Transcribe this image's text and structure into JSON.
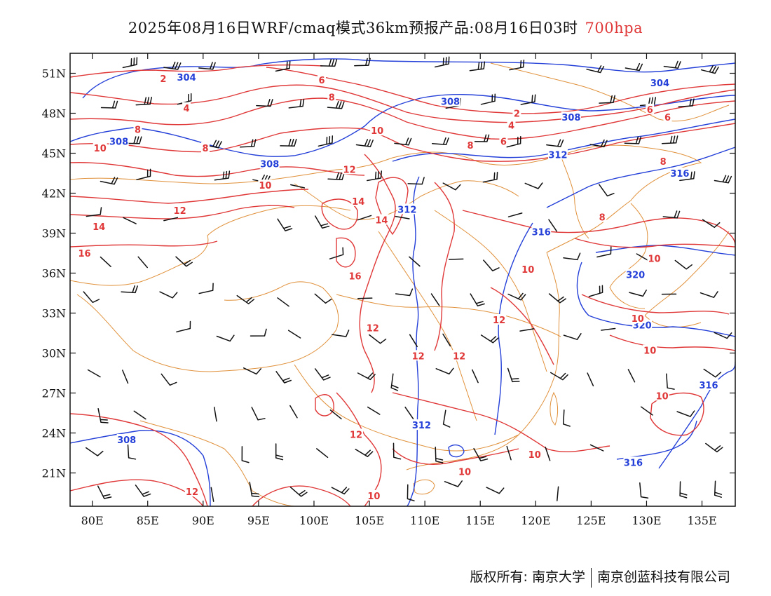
{
  "title": {
    "main": "2025年08月16日WRF/cmaq模式36km预报产品:08月16日03时",
    "level": "700hpa"
  },
  "axes": {
    "lat_labels": [
      "51N",
      "48N",
      "45N",
      "42N",
      "39N",
      "36N",
      "33N",
      "30N",
      "27N",
      "24N",
      "21N"
    ],
    "lat_values": [
      51,
      48,
      45,
      42,
      39,
      36,
      33,
      30,
      27,
      24,
      21
    ],
    "lon_labels": [
      "80E",
      "85E",
      "90E",
      "95E",
      "100E",
      "105E",
      "110E",
      "115E",
      "120E",
      "125E",
      "130E",
      "135E"
    ],
    "lon_values": [
      80,
      85,
      90,
      95,
      100,
      105,
      110,
      115,
      120,
      125,
      130,
      135
    ],
    "lon_range": [
      78,
      138
    ],
    "lat_range": [
      18.5,
      52.5
    ]
  },
  "colors": {
    "temperature_contour": "#e03838",
    "height_contour": "#2440d8",
    "boundary": "#e0903a",
    "wind_barb": "#111111",
    "title_level": "#e03838"
  },
  "height_labels": [
    {
      "text": "304",
      "lon": 88.5,
      "lat": 50.7
    },
    {
      "text": "304",
      "lon": 131.2,
      "lat": 50.3
    },
    {
      "text": "308",
      "lon": 112.3,
      "lat": 48.9
    },
    {
      "text": "308",
      "lon": 123.2,
      "lat": 47.7
    },
    {
      "text": "308",
      "lon": 82.4,
      "lat": 45.9
    },
    {
      "text": "308",
      "lon": 96.0,
      "lat": 44.2
    },
    {
      "text": "312",
      "lon": 122.0,
      "lat": 44.9
    },
    {
      "text": "316",
      "lon": 133.0,
      "lat": 43.5
    },
    {
      "text": "312",
      "lon": 108.4,
      "lat": 40.8
    },
    {
      "text": "316",
      "lon": 120.5,
      "lat": 39.1
    },
    {
      "text": "320",
      "lon": 129.0,
      "lat": 35.9
    },
    {
      "text": "320",
      "lon": 129.6,
      "lat": 32.1
    },
    {
      "text": "316",
      "lon": 135.6,
      "lat": 27.6
    },
    {
      "text": "312",
      "lon": 109.7,
      "lat": 24.6
    },
    {
      "text": "308",
      "lon": 83.1,
      "lat": 23.5
    },
    {
      "text": "316",
      "lon": 128.8,
      "lat": 21.8
    }
  ],
  "temperature_labels": [
    {
      "text": "2",
      "lon": 86.4,
      "lat": 50.6
    },
    {
      "text": "6",
      "lon": 100.7,
      "lat": 50.5
    },
    {
      "text": "8",
      "lon": 101.6,
      "lat": 49.2
    },
    {
      "text": "4",
      "lon": 88.5,
      "lat": 48.4
    },
    {
      "text": "2",
      "lon": 118.3,
      "lat": 48.0
    },
    {
      "text": "6",
      "lon": 130.3,
      "lat": 48.3
    },
    {
      "text": "6",
      "lon": 131.9,
      "lat": 47.7
    },
    {
      "text": "4",
      "lon": 117.8,
      "lat": 47.1
    },
    {
      "text": "8",
      "lon": 84.1,
      "lat": 46.8
    },
    {
      "text": "10",
      "lon": 105.7,
      "lat": 46.7
    },
    {
      "text": "8",
      "lon": 114.1,
      "lat": 45.6
    },
    {
      "text": "6",
      "lon": 117.1,
      "lat": 45.9
    },
    {
      "text": "8",
      "lon": 90.2,
      "lat": 45.4
    },
    {
      "text": "10",
      "lon": 80.7,
      "lat": 45.4
    },
    {
      "text": "12",
      "lon": 103.2,
      "lat": 43.8
    },
    {
      "text": "8",
      "lon": 131.5,
      "lat": 44.4
    },
    {
      "text": "10",
      "lon": 95.6,
      "lat": 42.6
    },
    {
      "text": "14",
      "lon": 104.0,
      "lat": 41.4
    },
    {
      "text": "12",
      "lon": 87.9,
      "lat": 40.7
    },
    {
      "text": "8",
      "lon": 126.0,
      "lat": 40.2
    },
    {
      "text": "14",
      "lon": 106.1,
      "lat": 40.0
    },
    {
      "text": "14",
      "lon": 80.6,
      "lat": 39.5
    },
    {
      "text": "16",
      "lon": 79.3,
      "lat": 37.5
    },
    {
      "text": "10",
      "lon": 130.7,
      "lat": 37.1
    },
    {
      "text": "10",
      "lon": 119.3,
      "lat": 36.3
    },
    {
      "text": "16",
      "lon": 103.7,
      "lat": 35.8
    },
    {
      "text": "12",
      "lon": 116.7,
      "lat": 32.5
    },
    {
      "text": "10",
      "lon": 129.2,
      "lat": 32.6
    },
    {
      "text": "12",
      "lon": 105.3,
      "lat": 31.9
    },
    {
      "text": "12",
      "lon": 109.4,
      "lat": 29.8
    },
    {
      "text": "12",
      "lon": 113.1,
      "lat": 29.8
    },
    {
      "text": "10",
      "lon": 130.3,
      "lat": 30.2
    },
    {
      "text": "10",
      "lon": 131.4,
      "lat": 26.8
    },
    {
      "text": "12",
      "lon": 103.8,
      "lat": 23.9
    },
    {
      "text": "10",
      "lon": 119.9,
      "lat": 22.4
    },
    {
      "text": "10",
      "lon": 113.6,
      "lat": 21.1
    },
    {
      "text": "12",
      "lon": 89.0,
      "lat": 19.6
    },
    {
      "text": "10",
      "lon": 105.4,
      "lat": 19.3
    }
  ],
  "credit": {
    "left": "版权所有: 南京大学",
    "right": "南京创蓝科技有限公司"
  }
}
